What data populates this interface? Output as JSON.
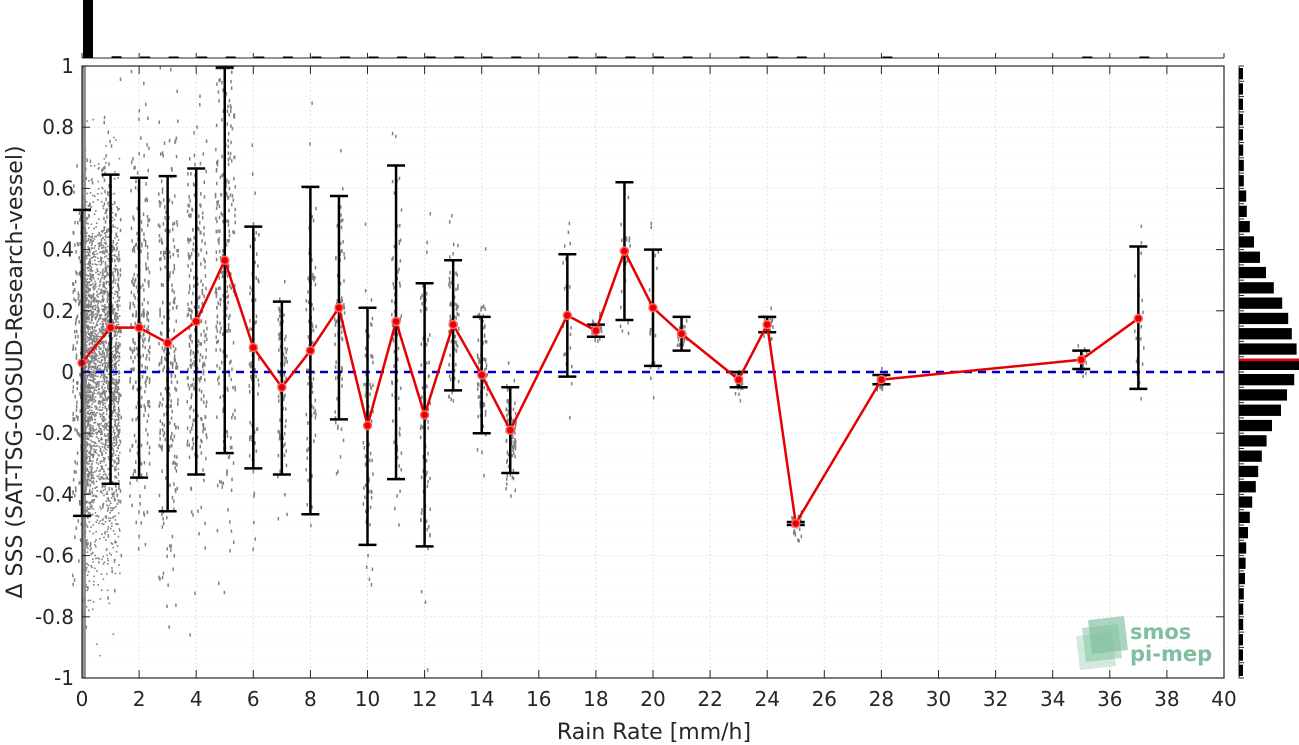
{
  "chart_data": {
    "type": "line",
    "xlabel": "Rain Rate [mm/h]",
    "ylabel": "Δ SSS (SAT-TSG-GOSUD-Research-vessel)",
    "xlim": [
      0,
      40
    ],
    "ylim": [
      -1,
      1
    ],
    "x_ticks": [
      0,
      2,
      4,
      6,
      8,
      10,
      12,
      14,
      16,
      18,
      20,
      22,
      24,
      26,
      28,
      30,
      32,
      34,
      36,
      38,
      40
    ],
    "y_ticks": [
      -1,
      -0.8,
      -0.6,
      -0.4,
      -0.2,
      0,
      0.2,
      0.4,
      0.6,
      0.8,
      1
    ],
    "y_tick_labels": [
      "-1",
      "-0.8",
      "-0.6",
      "-0.4",
      "-0.2",
      "0",
      "0.2",
      "0.4",
      "0.6",
      "0.8",
      "1"
    ],
    "grid": true,
    "reference_line": {
      "y": 0,
      "color": "#0000cc",
      "style": "dashed"
    },
    "series": [
      {
        "points": [
          {
            "x": 0,
            "y": 0.03,
            "lo": -0.47,
            "hi": 0.53
          },
          {
            "x": 1,
            "y": 0.145,
            "lo": -0.365,
            "hi": 0.645
          },
          {
            "x": 2,
            "y": 0.145,
            "lo": -0.345,
            "hi": 0.635
          },
          {
            "x": 3,
            "y": 0.095,
            "lo": -0.455,
            "hi": 0.64
          },
          {
            "x": 4,
            "y": 0.165,
            "lo": -0.335,
            "hi": 0.665
          },
          {
            "x": 5,
            "y": 0.365,
            "lo": -0.265,
            "hi": 0.995
          },
          {
            "x": 6,
            "y": 0.08,
            "lo": -0.315,
            "hi": 0.475
          },
          {
            "x": 7,
            "y": -0.05,
            "lo": -0.335,
            "hi": 0.23
          },
          {
            "x": 8,
            "y": 0.07,
            "lo": -0.465,
            "hi": 0.605
          },
          {
            "x": 9,
            "y": 0.21,
            "lo": -0.155,
            "hi": 0.575
          },
          {
            "x": 10,
            "y": -0.175,
            "lo": -0.565,
            "hi": 0.21
          },
          {
            "x": 11,
            "y": 0.165,
            "lo": -0.35,
            "hi": 0.675
          },
          {
            "x": 12,
            "y": -0.14,
            "lo": -0.57,
            "hi": 0.29
          },
          {
            "x": 13,
            "y": 0.155,
            "lo": -0.06,
            "hi": 0.365
          },
          {
            "x": 14,
            "y": -0.01,
            "lo": -0.2,
            "hi": 0.18
          },
          {
            "x": 15,
            "y": -0.19,
            "lo": -0.33,
            "hi": -0.05
          },
          {
            "x": 17,
            "y": 0.185,
            "lo": -0.015,
            "hi": 0.385
          },
          {
            "x": 18,
            "y": 0.135,
            "lo": 0.115,
            "hi": 0.155
          },
          {
            "x": 19,
            "y": 0.395,
            "lo": 0.17,
            "hi": 0.62
          },
          {
            "x": 20,
            "y": 0.21,
            "lo": 0.02,
            "hi": 0.4
          },
          {
            "x": 21,
            "y": 0.125,
            "lo": 0.07,
            "hi": 0.18
          },
          {
            "x": 23,
            "y": -0.025,
            "lo": -0.05,
            "hi": 0.0
          },
          {
            "x": 24,
            "y": 0.155,
            "lo": 0.13,
            "hi": 0.18
          },
          {
            "x": 25,
            "y": -0.495,
            "lo": -0.5,
            "hi": -0.49
          },
          {
            "x": 28,
            "y": -0.025,
            "lo": -0.04,
            "hi": -0.01
          },
          {
            "x": 35,
            "y": 0.04,
            "lo": 0.01,
            "hi": 0.07
          },
          {
            "x": 37,
            "y": 0.175,
            "lo": -0.055,
            "hi": 0.41
          }
        ],
        "color": "#e60000",
        "errorbar_color": "#000000"
      }
    ],
    "scatter_color": "#808080",
    "top_histogram": {
      "bins_x": [
        0,
        1,
        2,
        3,
        4,
        5,
        6,
        7,
        8,
        9,
        10,
        11,
        12,
        13,
        14,
        15,
        17,
        18,
        19,
        20,
        21,
        23,
        24,
        25,
        28,
        35,
        37
      ],
      "relative_counts": [
        1.0,
        0.03,
        0.02,
        0.015,
        0.012,
        0.01,
        0.008,
        0.006,
        0.006,
        0.005,
        0.005,
        0.005,
        0.004,
        0.004,
        0.003,
        0.003,
        0.003,
        0.002,
        0.003,
        0.002,
        0.002,
        0.002,
        0.002,
        0.002,
        0.002,
        0.002,
        0.002
      ]
    },
    "right_histogram": {
      "bins_y": [
        0.975,
        0.925,
        0.875,
        0.825,
        0.775,
        0.725,
        0.675,
        0.625,
        0.575,
        0.525,
        0.475,
        0.425,
        0.375,
        0.325,
        0.275,
        0.225,
        0.175,
        0.125,
        0.075,
        0.025,
        -0.025,
        -0.075,
        -0.125,
        -0.175,
        -0.225,
        -0.275,
        -0.325,
        -0.375,
        -0.425,
        -0.475,
        -0.525,
        -0.575,
        -0.625,
        -0.675,
        -0.725,
        -0.775,
        -0.825,
        -0.875,
        -0.925,
        -0.975
      ],
      "relative_counts": [
        0.05,
        0.04,
        0.05,
        0.06,
        0.06,
        0.07,
        0.08,
        0.08,
        0.12,
        0.13,
        0.18,
        0.25,
        0.35,
        0.45,
        0.58,
        0.72,
        0.82,
        0.88,
        0.96,
        1.0,
        0.92,
        0.8,
        0.7,
        0.55,
        0.46,
        0.38,
        0.32,
        0.28,
        0.22,
        0.18,
        0.15,
        0.12,
        0.11,
        0.1,
        0.08,
        0.07,
        0.07,
        0.06,
        0.05,
        0.06
      ],
      "mean_line": {
        "y": 0.04,
        "color": "#e60000"
      }
    }
  },
  "logo": {
    "line1": "smos",
    "line2": "pi-mep",
    "color": "#7fbf9f"
  }
}
